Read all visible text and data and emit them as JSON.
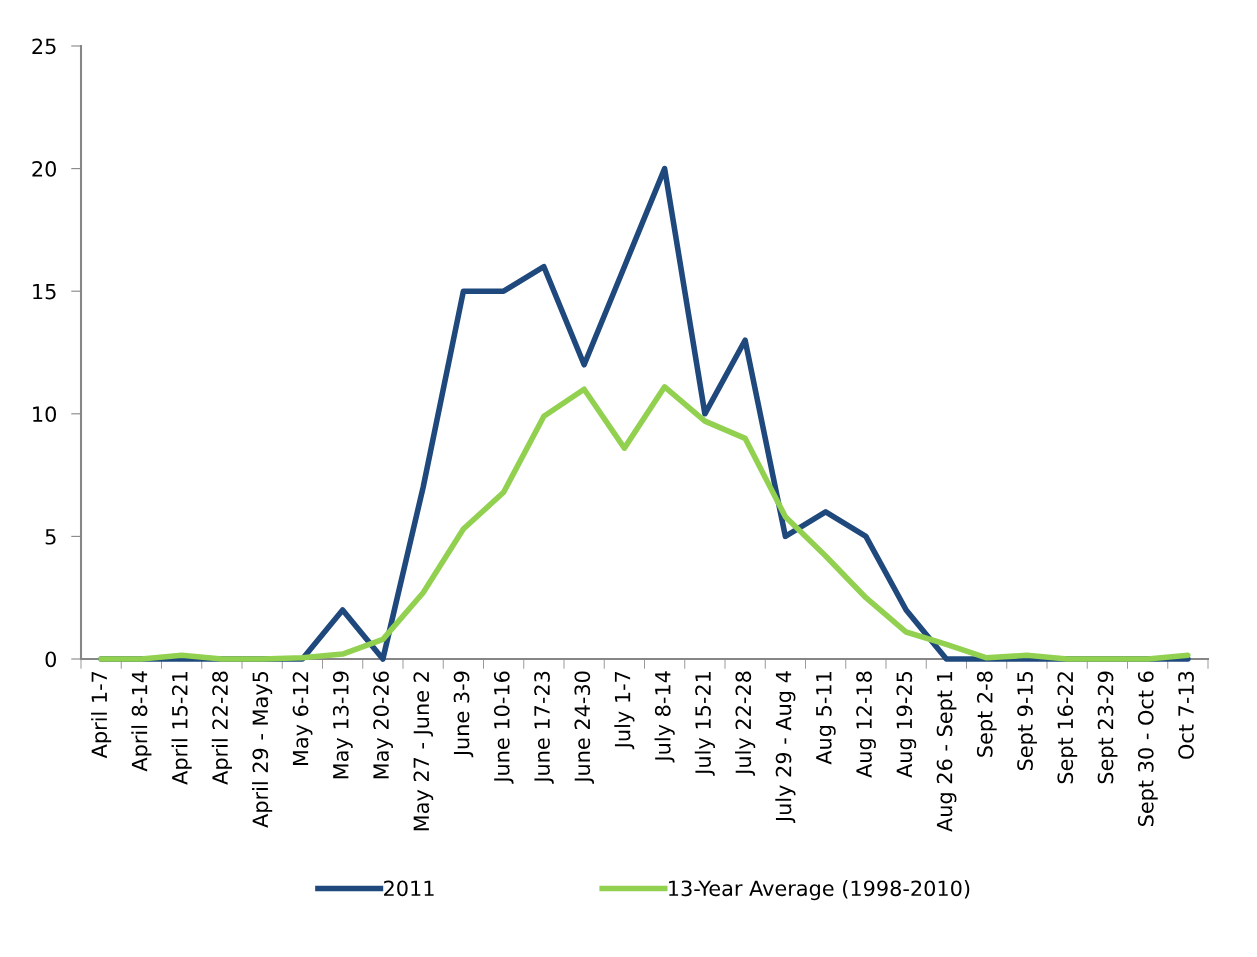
{
  "chart_data": {
    "type": "line",
    "categories": [
      "April 1-7",
      "April 8-14",
      "April 15-21",
      "April 22-28",
      "April 29 - May5",
      "May 6-12",
      "May 13-19",
      "May 20-26",
      "May 27 - June 2",
      "June 3-9",
      "June 10-16",
      "June 17-23",
      "June 24-30",
      "July 1-7",
      "July 8-14",
      "July 15-21",
      "July 22-28",
      "July 29 - Aug 4",
      "Aug 5-11",
      "Aug 12-18",
      "Aug 19-25",
      "Aug 26 - Sept 1",
      "Sept 2-8",
      "Sept 9-15",
      "Sept 16-22",
      "Sept 23-29",
      "Sept 30 - Oct 6",
      "Oct 7-13"
    ],
    "series": [
      {
        "name": "2011",
        "color": "#1f497d",
        "values": [
          0,
          0,
          0,
          0,
          0,
          0,
          2,
          0,
          7,
          15,
          15,
          16,
          12,
          16,
          20,
          10,
          13,
          5,
          6,
          5,
          2,
          0,
          0,
          0,
          0,
          0,
          0,
          0
        ]
      },
      {
        "name": "13-Year Average (1998-2010)",
        "color": "#92d050",
        "values": [
          0,
          0,
          0.15,
          0,
          0,
          0.05,
          0.2,
          0.8,
          2.7,
          5.3,
          6.8,
          9.9,
          11,
          8.6,
          11.1,
          9.7,
          9.0,
          5.8,
          4.2,
          2.5,
          1.1,
          0.6,
          0.05,
          0.15,
          0,
          0,
          0,
          0.15
        ]
      }
    ],
    "ylim": [
      0,
      25
    ],
    "yticks": [
      0,
      5,
      10,
      15,
      20,
      25
    ],
    "grid": false,
    "legend": "bottom",
    "marker": "none",
    "line_style": "solid"
  }
}
